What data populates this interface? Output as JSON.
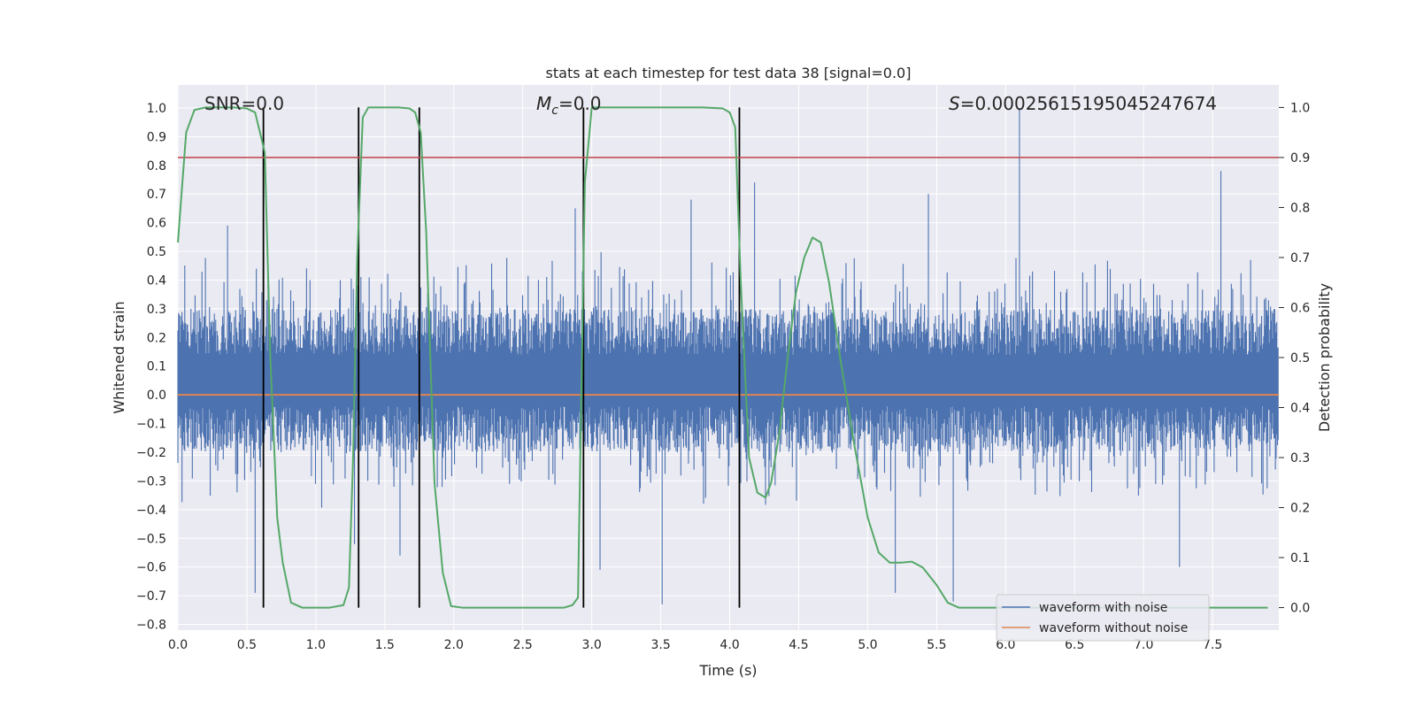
{
  "chart_data": {
    "type": "line",
    "title": "stats at each timestep for test data 38 [signal=0.0]",
    "xlabel": "Time (s)",
    "ylabel_left": "Whitened strain",
    "ylabel_right": "Detection probability",
    "xlim": [
      0.0,
      7.98
    ],
    "ylim_left": [
      -0.82,
      1.08
    ],
    "ylim_right": [
      -0.045,
      1.045
    ],
    "x_ticks": [
      "0.0",
      "0.5",
      "1.0",
      "1.5",
      "2.0",
      "2.5",
      "3.0",
      "3.5",
      "4.0",
      "4.5",
      "5.0",
      "5.5",
      "6.0",
      "6.5",
      "7.0",
      "7.5"
    ],
    "y_left_ticks": [
      "−0.8",
      "−0.7",
      "−0.6",
      "−0.5",
      "−0.4",
      "−0.3",
      "−0.2",
      "−0.1",
      "0.0",
      "0.1",
      "0.2",
      "0.3",
      "0.4",
      "0.5",
      "0.6",
      "0.7",
      "0.8",
      "0.9",
      "1.0"
    ],
    "y_right_ticks": [
      "0.0",
      "0.1",
      "0.2",
      "0.3",
      "0.4",
      "0.5",
      "0.6",
      "0.7",
      "0.8",
      "0.9",
      "1.0"
    ],
    "annotations": {
      "snr_label": "SNR=0.0",
      "mc_symbol": "M",
      "mc_sub": "c",
      "mc_value": "=0.0",
      "s_symbol": "S",
      "s_value": "=0.0002561519504524767​4"
    },
    "threshold": {
      "axis": "right",
      "value": 0.9
    },
    "zero_line": {
      "axis": "left",
      "value": 0.0
    },
    "event_lines_x": [
      0.62,
      1.31,
      1.75,
      2.94,
      4.07
    ],
    "noise_spikes": [
      {
        "x": 6.1,
        "y": 1.0
      },
      {
        "x": 7.56,
        "y": 0.78
      },
      {
        "x": 4.18,
        "y": 0.74
      },
      {
        "x": 5.44,
        "y": 0.7
      },
      {
        "x": 3.72,
        "y": 0.68
      },
      {
        "x": 2.88,
        "y": 0.65
      },
      {
        "x": 0.36,
        "y": 0.59
      },
      {
        "x": 0.56,
        "y": -0.69
      },
      {
        "x": 3.51,
        "y": -0.73
      },
      {
        "x": 5.62,
        "y": -0.72
      },
      {
        "x": 3.06,
        "y": -0.61
      },
      {
        "x": 5.2,
        "y": -0.69
      },
      {
        "x": 7.26,
        "y": -0.6
      },
      {
        "x": 1.28,
        "y": -0.52
      },
      {
        "x": 1.61,
        "y": -0.56
      }
    ],
    "probability_curve": {
      "x": [
        0.0,
        0.06,
        0.12,
        0.2,
        0.3,
        0.4,
        0.5,
        0.56,
        0.63,
        0.67,
        0.72,
        0.76,
        0.82,
        0.9,
        1.0,
        1.1,
        1.2,
        1.24,
        1.27,
        1.3,
        1.34,
        1.38,
        1.42,
        1.5,
        1.6,
        1.68,
        1.72,
        1.76,
        1.8,
        1.86,
        1.92,
        1.98,
        2.06,
        2.2,
        2.6,
        2.8,
        2.86,
        2.9,
        2.95,
        3.0,
        3.1,
        3.4,
        3.8,
        3.95,
        4.0,
        4.04,
        4.08,
        4.14,
        4.2,
        4.26,
        4.3,
        4.36,
        4.42,
        4.48,
        4.54,
        4.6,
        4.66,
        4.72,
        4.8,
        4.9,
        5.0,
        5.08,
        5.16,
        5.24,
        5.32,
        5.4,
        5.5,
        5.58,
        5.66,
        5.8,
        6.2,
        7.0,
        7.9
      ],
      "y": [
        0.73,
        0.95,
        0.995,
        1.0,
        1.0,
        1.0,
        0.998,
        0.99,
        0.91,
        0.5,
        0.18,
        0.09,
        0.01,
        0.0,
        0.0,
        0.0,
        0.005,
        0.04,
        0.3,
        0.7,
        0.98,
        1.0,
        1.0,
        1.0,
        1.0,
        0.998,
        0.99,
        0.95,
        0.75,
        0.25,
        0.07,
        0.003,
        0.0,
        0.0,
        0.0,
        0.0,
        0.005,
        0.02,
        0.85,
        1.0,
        1.0,
        1.0,
        1.0,
        0.998,
        0.99,
        0.96,
        0.65,
        0.3,
        0.23,
        0.22,
        0.25,
        0.35,
        0.5,
        0.63,
        0.7,
        0.74,
        0.73,
        0.65,
        0.5,
        0.33,
        0.18,
        0.11,
        0.09,
        0.09,
        0.092,
        0.08,
        0.045,
        0.01,
        0.0,
        0.0,
        0.0,
        0.0,
        0.0
      ]
    },
    "series": [
      {
        "name": "waveform with noise",
        "color": "#4c72b0"
      },
      {
        "name": "waveform without noise",
        "color": "#dd8452"
      },
      {
        "name": "detection probability",
        "color": "#55a868"
      }
    ],
    "threshold_color": "#c44e52",
    "legend_position": "lower-right",
    "grid": true
  }
}
